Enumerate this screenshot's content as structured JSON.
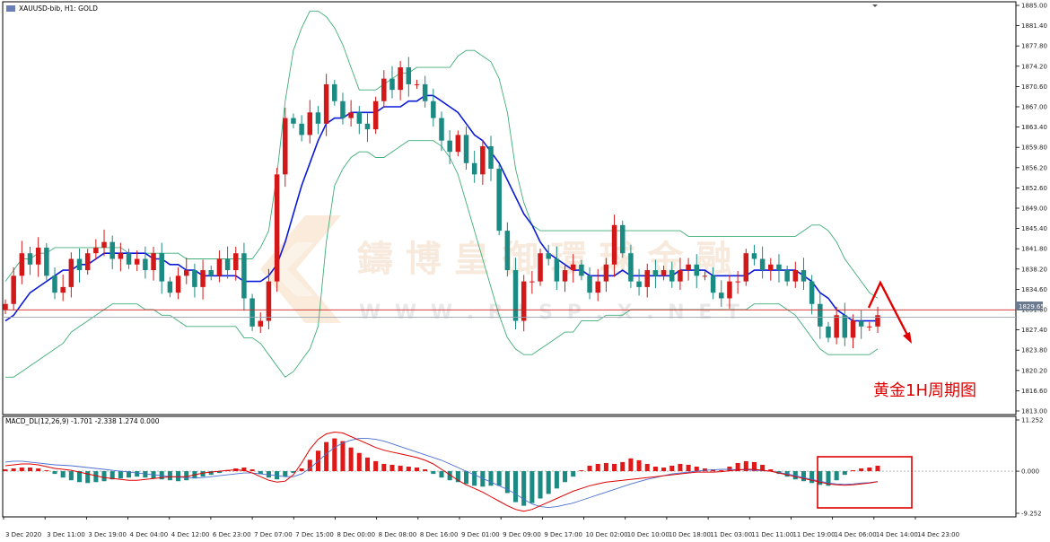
{
  "window": {
    "title": "XAUUSD-bib, H1:  GOLD",
    "annotation": "黄金1H周期图",
    "watermark_text": "鑄 博 皇 御 環 球 金 融",
    "watermark_sub": "W W W . R I S P . X . N E T"
  },
  "chart_data": [
    {
      "type": "candlestick",
      "title": "XAUUSD-bib, H1:  GOLD",
      "ylim": [
        1813.0,
        1885.0
      ],
      "price_ticks": [
        "1885.00",
        "1881.40",
        "1877.80",
        "1874.20",
        "1870.60",
        "1867.00",
        "1863.40",
        "1859.80",
        "1856.20",
        "1852.60",
        "1849.00",
        "1845.40",
        "1841.80",
        "1838.20",
        "1834.60",
        "1831.00",
        "1827.40",
        "1823.80",
        "1820.20",
        "1816.60",
        "1813.00"
      ],
      "current_price_label": "1829.65",
      "current_price": 1829.65,
      "resistance_price": 1830.95,
      "time_labels": [
        "3 Dec 2020",
        "3 Dec 11:00",
        "3 Dec 19:00",
        "4 Dec 04:00",
        "4 Dec 12:00",
        "6 Dec 23:00",
        "7 Dec 07:00",
        "7 Dec 15:00",
        "8 Dec 00:00",
        "8 Dec 08:00",
        "8 Dec 16:00",
        "9 Dec 01:00",
        "9 Dec 09:00",
        "9 Dec 17:00",
        "10 Dec 02:00",
        "10 Dec 10:00",
        "10 Dec 18:00",
        "11 Dec 03:00",
        "11 Dec 11:00",
        "11 Dec 19:00",
        "14 Dec 06:00",
        "14 Dec 14:00",
        "14 Dec 23:00"
      ],
      "close_path": [
        1832,
        1837,
        1841,
        1839,
        1842,
        1837,
        1834,
        1835,
        1840,
        1838,
        1841,
        1842,
        1843,
        1840,
        1841,
        1839,
        1840,
        1838,
        1841,
        1836,
        1834,
        1837,
        1838,
        1835,
        1838,
        1837,
        1840,
        1838,
        1841,
        1833,
        1828,
        1829,
        1836,
        1855,
        1865,
        1864,
        1862,
        1866,
        1864,
        1871,
        1868,
        1865,
        1866,
        1864,
        1863,
        1868,
        1872,
        1870,
        1874,
        1871,
        1871,
        1868,
        1865,
        1861,
        1859,
        1862,
        1857,
        1855,
        1860,
        1856,
        1845,
        1838,
        1829,
        1836,
        1836,
        1841,
        1840,
        1836,
        1838,
        1839,
        1837,
        1834,
        1836,
        1839,
        1846,
        1841,
        1836,
        1835,
        1838,
        1837,
        1838,
        1836,
        1838,
        1839,
        1837,
        1837,
        1834,
        1833,
        1836,
        1836,
        1841,
        1840,
        1838,
        1839,
        1838,
        1836,
        1838,
        1836,
        1832,
        1828,
        1826,
        1830,
        1826,
        1829,
        1828,
        1828,
        1830
      ],
      "bollinger": {
        "upper": [
          1836,
          1838,
          1840,
          1840,
          1841,
          1841,
          1842,
          1842,
          1842,
          1842,
          1842,
          1842,
          1842,
          1842,
          1842,
          1841,
          1841,
          1841,
          1841,
          1841,
          1841,
          1841,
          1840,
          1840,
          1840,
          1840,
          1840,
          1840,
          1840,
          1840,
          1840,
          1842,
          1845,
          1855,
          1868,
          1877,
          1881,
          1884,
          1884,
          1883,
          1881,
          1878,
          1874,
          1870,
          1870,
          1870,
          1871,
          1872,
          1873,
          1873,
          1874,
          1874,
          1874,
          1874,
          1874,
          1876,
          1877,
          1877,
          1876,
          1875,
          1872,
          1866,
          1856,
          1850,
          1846,
          1845,
          1845,
          1845,
          1845,
          1845,
          1845,
          1845,
          1845,
          1845,
          1845,
          1845,
          1845,
          1845,
          1845,
          1845,
          1845,
          1845,
          1845,
          1844,
          1844,
          1844,
          1844,
          1844,
          1844,
          1844,
          1844,
          1844,
          1844,
          1844,
          1844,
          1844,
          1844,
          1845,
          1846,
          1846,
          1845,
          1843,
          1840,
          1838,
          1836,
          1834,
          1833
        ],
        "mid": [
          1829,
          1830,
          1832,
          1834,
          1835,
          1836,
          1837,
          1838,
          1838,
          1839,
          1839,
          1840,
          1841,
          1841,
          1841,
          1841,
          1841,
          1841,
          1840,
          1840,
          1839,
          1839,
          1838,
          1838,
          1837,
          1837,
          1837,
          1837,
          1837,
          1836,
          1836,
          1836,
          1837,
          1839,
          1843,
          1848,
          1853,
          1857,
          1861,
          1864,
          1865,
          1865,
          1866,
          1866,
          1866,
          1866,
          1867,
          1867,
          1867,
          1868,
          1868,
          1869,
          1869,
          1868,
          1867,
          1866,
          1864,
          1862,
          1861,
          1859,
          1857,
          1854,
          1851,
          1848,
          1846,
          1843,
          1841,
          1840,
          1839,
          1838,
          1838,
          1837,
          1837,
          1837,
          1837,
          1838,
          1837,
          1837,
          1837,
          1837,
          1837,
          1837,
          1838,
          1838,
          1838,
          1838,
          1837,
          1837,
          1837,
          1837,
          1837,
          1838,
          1838,
          1838,
          1838,
          1838,
          1838,
          1837,
          1836,
          1834,
          1833,
          1831,
          1830,
          1829,
          1829,
          1829,
          1829
        ],
        "lower": [
          1819,
          1819,
          1820,
          1821,
          1822,
          1823,
          1824,
          1825,
          1827,
          1828,
          1829,
          1830,
          1831,
          1832,
          1832,
          1832,
          1832,
          1831,
          1831,
          1830,
          1830,
          1829,
          1828,
          1828,
          1828,
          1828,
          1828,
          1828,
          1828,
          1826,
          1826,
          1825,
          1823,
          1821,
          1819,
          1820,
          1822,
          1824,
          1828,
          1843,
          1853,
          1856,
          1858,
          1859,
          1859,
          1858,
          1858,
          1859,
          1860,
          1861,
          1861,
          1861,
          1861,
          1860,
          1858,
          1855,
          1850,
          1845,
          1840,
          1835,
          1830,
          1826,
          1824,
          1823,
          1823,
          1824,
          1825,
          1826,
          1827,
          1827,
          1829,
          1829,
          1829,
          1830,
          1830,
          1830,
          1831,
          1831,
          1831,
          1831,
          1831,
          1831,
          1831,
          1831,
          1831,
          1831,
          1831,
          1831,
          1831,
          1831,
          1831,
          1832,
          1832,
          1832,
          1832,
          1831,
          1830,
          1828,
          1826,
          1824,
          1823,
          1823,
          1823,
          1823,
          1823,
          1823,
          1824
        ]
      }
    },
    {
      "type": "macd",
      "title": "MACD_DL(12,26,9) -1.701 -2.338 1.274 0.000",
      "ylim": [
        -9.252,
        11.252
      ],
      "ticks": [
        "11.252",
        "0.000",
        "-9.252"
      ],
      "histogram": [
        0.4,
        0.6,
        0.8,
        0.8,
        0.6,
        0.2,
        -0.6,
        -1.4,
        -2.0,
        -2.4,
        -2.6,
        -2.4,
        -2.2,
        -1.8,
        -1.6,
        -1.4,
        -1.2,
        -1.4,
        -1.6,
        -1.8,
        -2.0,
        -2.2,
        -2.0,
        -1.6,
        -1.2,
        -0.8,
        -0.4,
        0.2,
        0.6,
        0.8,
        0.4,
        -0.6,
        -1.4,
        -1.8,
        -1.2,
        -0.4,
        0.6,
        2.5,
        4.5,
        6.4,
        7.2,
        6.6,
        5.2,
        4.0,
        3.0,
        2.2,
        1.6,
        1.4,
        1.2,
        1.0,
        0.8,
        0.4,
        -0.6,
        -1.4,
        -2.0,
        -2.4,
        -2.8,
        -3.2,
        -3.4,
        -3.2,
        -3.2,
        -4.8,
        -6.8,
        -7.6,
        -7.0,
        -6.0,
        -5.0,
        -3.8,
        -2.4,
        -1.2,
        0.2,
        1.2,
        1.6,
        1.8,
        1.6,
        2.0,
        2.8,
        2.4,
        1.6,
        1.0,
        0.8,
        1.2,
        1.6,
        1.4,
        1.0,
        0.6,
        0.4,
        0.2,
        1.0,
        1.8,
        2.2,
        2.0,
        1.4,
        0.4,
        -0.6,
        -1.2,
        -1.8,
        -2.2,
        -2.6,
        -3.0,
        -3.2,
        -2.0,
        -0.8,
        0.2,
        0.6,
        0.8,
        1.2
      ],
      "macd_line": [
        1.2,
        1.4,
        1.6,
        1.6,
        1.4,
        1.0,
        0.6,
        0.4,
        0.2,
        -0.2,
        -0.6,
        -1.0,
        -1.4,
        -1.6,
        -1.8,
        -2.0,
        -2.0,
        -1.8,
        -1.6,
        -1.4,
        -1.2,
        -1.2,
        -1.2,
        -0.8,
        -0.4,
        -0.2,
        0.0,
        0.2,
        0.3,
        0.2,
        -0.4,
        -1.2,
        -2.0,
        -2.4,
        -2.2,
        -0.8,
        1.8,
        4.8,
        7.0,
        8.2,
        8.6,
        8.4,
        7.6,
        6.8,
        6.0,
        5.2,
        4.6,
        4.2,
        3.8,
        3.4,
        3.0,
        2.4,
        1.6,
        0.4,
        -0.8,
        -2.0,
        -3.0,
        -3.8,
        -4.6,
        -5.6,
        -6.6,
        -7.6,
        -8.4,
        -8.8,
        -8.4,
        -7.6,
        -6.8,
        -6.0,
        -5.2,
        -4.4,
        -3.8,
        -3.2,
        -2.8,
        -2.4,
        -2.2,
        -2.0,
        -1.8,
        -1.6,
        -1.4,
        -1.2,
        -1.0,
        -0.8,
        -0.6,
        -0.4,
        -0.2,
        -0.2,
        -0.2,
        -0.1,
        0.1,
        0.3,
        0.4,
        0.4,
        0.2,
        0.0,
        -0.4,
        -0.8,
        -1.2,
        -1.6,
        -2.0,
        -2.4,
        -2.8,
        -3.0,
        -3.1,
        -3.0,
        -2.8,
        -2.6,
        -2.3
      ],
      "signal_line": [
        2.0,
        2.2,
        2.2,
        2.0,
        1.8,
        1.6,
        1.4,
        1.3,
        1.2,
        1.0,
        0.8,
        0.6,
        0.4,
        0.2,
        0.0,
        -0.2,
        -0.4,
        -0.6,
        -0.8,
        -1.0,
        -1.2,
        -1.3,
        -1.4,
        -1.5,
        -1.4,
        -1.2,
        -1.0,
        -0.8,
        -0.6,
        -0.4,
        -0.4,
        -0.6,
        -0.8,
        -1.0,
        -1.2,
        -1.2,
        -0.6,
        0.6,
        2.2,
        3.8,
        5.2,
        6.2,
        6.8,
        7.2,
        7.2,
        7.0,
        6.6,
        6.0,
        5.4,
        4.8,
        4.2,
        3.6,
        3.0,
        2.4,
        1.6,
        0.8,
        0.0,
        -0.8,
        -1.6,
        -2.4,
        -3.2,
        -4.0,
        -5.0,
        -6.2,
        -7.2,
        -7.8,
        -8.0,
        -7.8,
        -7.4,
        -7.0,
        -6.4,
        -5.8,
        -5.2,
        -4.6,
        -4.0,
        -3.4,
        -2.8,
        -2.3,
        -1.8,
        -1.4,
        -1.0,
        -0.6,
        -0.4,
        -0.2,
        0.0,
        0.2,
        0.3,
        0.4,
        0.4,
        0.3,
        0.3,
        0.2,
        0.1,
        0.0,
        -0.3,
        -0.6,
        -1.0,
        -1.4,
        -1.8,
        -2.2,
        -2.6,
        -2.8,
        -2.9,
        -2.8,
        -2.6,
        -2.5,
        -2.3
      ]
    }
  ],
  "colors": {
    "bull": "#d21818",
    "bear": "#1a8a82",
    "ma": "#0a1ad8",
    "band": "#3fae78",
    "macd_main": "#e00000",
    "macd_signal": "#4a6fd0",
    "hist_pos": "#e01818",
    "hist_neg": "#1a8a82",
    "annotation": "#e00000"
  }
}
